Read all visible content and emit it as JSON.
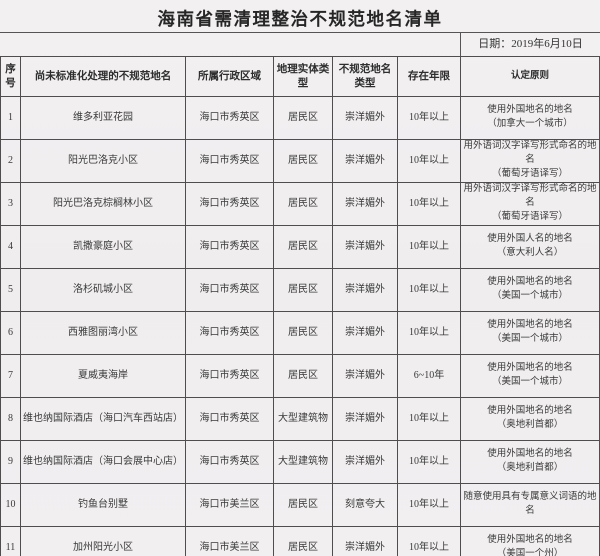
{
  "title": "海南省需清理整治不规范地名清单",
  "date_label": "日期：2019年6月10日",
  "colors": {
    "background": "#f1eff0",
    "border": "#4f4d4e",
    "text": "#3a3a3a",
    "title_text": "#262626"
  },
  "table": {
    "headers": [
      "序号",
      "尚未标准化处理的不规范地名",
      "所属行政区域",
      "地理实体类型",
      "不规范地名类型",
      "存在年限",
      "认定原则"
    ],
    "rows": [
      [
        "1",
        "维多利亚花园",
        "海口市秀英区",
        "居民区",
        "崇洋媚外",
        "10年以上",
        "使用外国地名的地名\n（加拿大一个城市）"
      ],
      [
        "2",
        "阳光巴洛克小区",
        "海口市秀英区",
        "居民区",
        "崇洋媚外",
        "10年以上",
        "用外语词汉字译写形式命名的地名\n（葡萄牙语译写）"
      ],
      [
        "3",
        "阳光巴洛克棕榈林小区",
        "海口市秀英区",
        "居民区",
        "崇洋媚外",
        "10年以上",
        "用外语词汉字译写形式命名的地名\n（葡萄牙语译写）"
      ],
      [
        "4",
        "凯撒豪庭小区",
        "海口市秀英区",
        "居民区",
        "崇洋媚外",
        "10年以上",
        "使用外国人名的地名\n（意大利人名）"
      ],
      [
        "5",
        "洛杉矶城小区",
        "海口市秀英区",
        "居民区",
        "崇洋媚外",
        "10年以上",
        "使用外国地名的地名\n（美国一个城市）"
      ],
      [
        "6",
        "西雅图丽湾小区",
        "海口市秀英区",
        "居民区",
        "崇洋媚外",
        "10年以上",
        "使用外国地名的地名\n（美国一个城市）"
      ],
      [
        "7",
        "夏威夷海岸",
        "海口市秀英区",
        "居民区",
        "崇洋媚外",
        "6~10年",
        "使用外国地名的地名\n（美国一个城市）"
      ],
      [
        "8",
        "维也纳国际酒店（海口汽车西站店）",
        "海口市秀英区",
        "大型建筑物",
        "崇洋媚外",
        "10年以上",
        "使用外国地名的地名\n（奥地利首都）"
      ],
      [
        "9",
        "维也纳国际酒店（海口会展中心店）",
        "海口市秀英区",
        "大型建筑物",
        "崇洋媚外",
        "10年以上",
        "使用外国地名的地名\n（奥地利首都）"
      ],
      [
        "10",
        "钓鱼台别墅",
        "海口市美兰区",
        "居民区",
        "刻意夸大",
        "10年以上",
        "随意使用具有专属意义词语的地名"
      ],
      [
        "11",
        "加州阳光小区",
        "海口市美兰区",
        "居民区",
        "崇洋媚外",
        "10年以上",
        "使用外国地名的地名\n（美国一个州）"
      ]
    ]
  }
}
